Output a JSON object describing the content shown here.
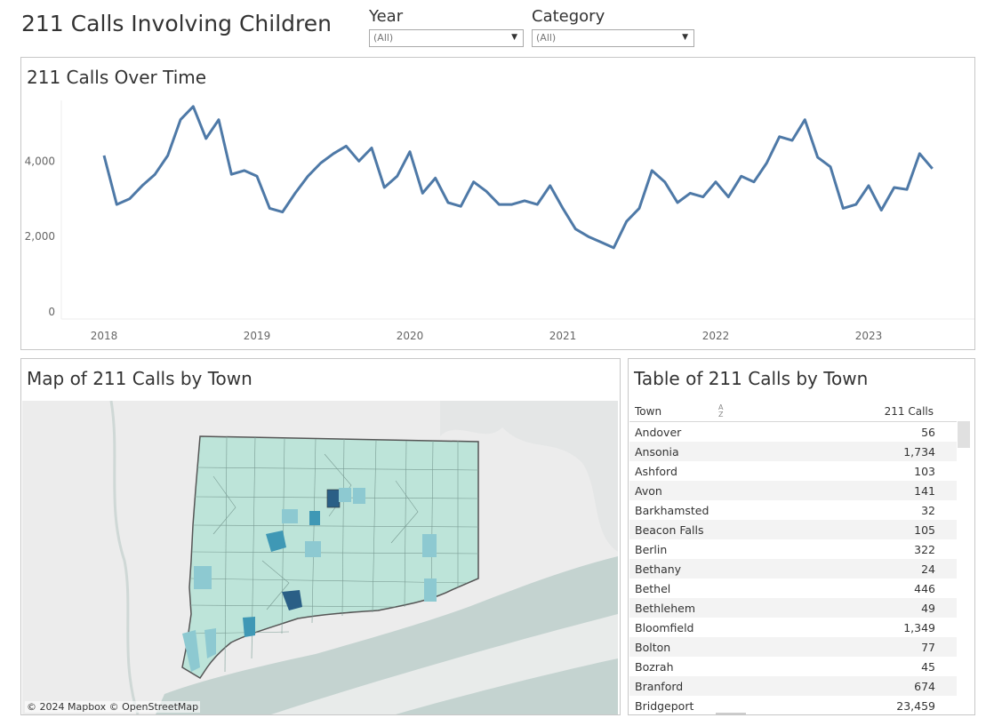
{
  "title": "211 Calls Involving Children",
  "filters": [
    {
      "label": "Year",
      "value": "(All)"
    },
    {
      "label": "Category",
      "value": "(All)"
    }
  ],
  "panels": {
    "chart": {
      "title": "211 Calls Over Time"
    },
    "map": {
      "title": "Map of 211 Calls by Town",
      "attribution": "© 2024 Mapbox © OpenStreetMap"
    },
    "table": {
      "title": "Table of 211 Calls by Town",
      "col_town": "Town",
      "col_calls": "211 Calls"
    }
  },
  "chart_data": {
    "type": "line",
    "title": "211 Calls Over Time",
    "x_ticks": [
      "2018",
      "2019",
      "2020",
      "2021",
      "2022",
      "2023"
    ],
    "y_ticks": [
      "0",
      "2,000",
      "4,000"
    ],
    "ylim": [
      0,
      5800
    ],
    "x_start": "2018-01",
    "series": [
      {
        "color": "#4e79a7",
        "x": [
          "2018-01",
          "2018-02",
          "2018-03",
          "2018-04",
          "2018-05",
          "2018-06",
          "2018-07",
          "2018-08",
          "2018-09",
          "2018-10",
          "2018-11",
          "2018-12",
          "2019-01",
          "2019-02",
          "2019-03",
          "2019-04",
          "2019-05",
          "2019-06",
          "2019-07",
          "2019-08",
          "2019-09",
          "2019-10",
          "2019-11",
          "2019-12",
          "2020-01",
          "2020-02",
          "2020-03",
          "2020-04",
          "2020-05",
          "2020-06",
          "2020-07",
          "2020-08",
          "2020-09",
          "2020-10",
          "2020-11",
          "2020-12",
          "2021-01",
          "2021-02",
          "2021-03",
          "2021-04",
          "2021-05",
          "2021-06",
          "2021-07",
          "2021-08",
          "2021-09",
          "2021-10",
          "2021-11",
          "2021-12",
          "2022-01",
          "2022-02",
          "2022-03",
          "2022-04",
          "2022-05",
          "2022-06",
          "2022-07",
          "2022-08",
          "2022-09",
          "2022-10",
          "2022-11",
          "2022-12",
          "2023-01",
          "2023-02",
          "2023-03",
          "2023-04",
          "2023-05",
          "2023-06"
        ],
        "values": [
          4150,
          2850,
          3000,
          3350,
          3650,
          4150,
          5100,
          5450,
          4600,
          5100,
          3650,
          3750,
          3600,
          2750,
          2650,
          3150,
          3600,
          3950,
          4200,
          4400,
          4000,
          4350,
          3300,
          3600,
          4250,
          3150,
          3550,
          2900,
          2800,
          3450,
          3200,
          2850,
          2850,
          2950,
          2850,
          3350,
          2750,
          2200,
          2000,
          1850,
          1700,
          2400,
          2750,
          3750,
          3450,
          2900,
          3150,
          3050,
          3450,
          3050,
          3600,
          3450,
          3950,
          4650,
          4550,
          5100,
          4100,
          3850,
          2750,
          2850,
          3350,
          2700,
          3300,
          3250,
          4200,
          3800
        ]
      }
    ]
  },
  "towns": [
    {
      "town": "Andover",
      "calls": "56"
    },
    {
      "town": "Ansonia",
      "calls": "1,734"
    },
    {
      "town": "Ashford",
      "calls": "103"
    },
    {
      "town": "Avon",
      "calls": "141"
    },
    {
      "town": "Barkhamsted",
      "calls": "32"
    },
    {
      "town": "Beacon Falls",
      "calls": "105"
    },
    {
      "town": "Berlin",
      "calls": "322"
    },
    {
      "town": "Bethany",
      "calls": "24"
    },
    {
      "town": "Bethel",
      "calls": "446"
    },
    {
      "town": "Bethlehem",
      "calls": "49"
    },
    {
      "town": "Bloomfield",
      "calls": "1,349"
    },
    {
      "town": "Bolton",
      "calls": "77"
    },
    {
      "town": "Bozrah",
      "calls": "45"
    },
    {
      "town": "Branford",
      "calls": "674"
    },
    {
      "town": "Bridgeport",
      "calls": "23,459"
    }
  ],
  "colors": {
    "line": "#4e79a7",
    "map_base": "#bde4d9",
    "map_dark": "#2a5f86",
    "map_mid": "#3f98b5",
    "map_light": "#8dc9d1",
    "water": "#c7d4d1"
  }
}
